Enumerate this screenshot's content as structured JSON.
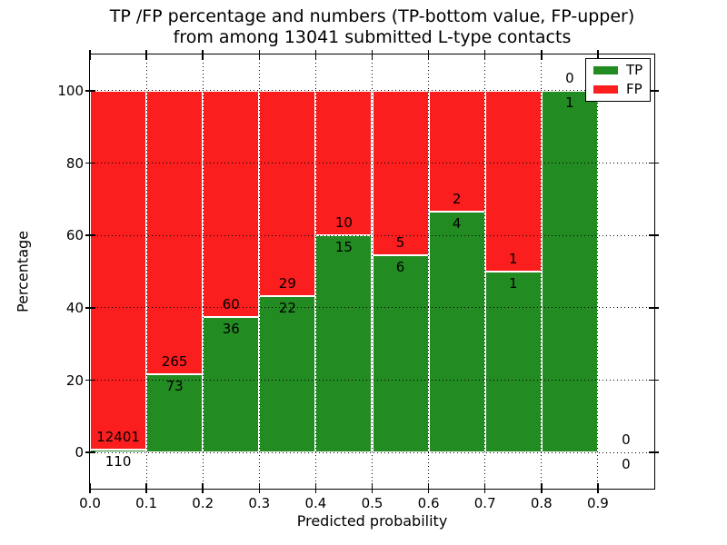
{
  "chart_data": {
    "type": "bar",
    "stacked": true,
    "title_lines": [
      "TP /FP percentage and numbers (TP-bottom value, FP-upper)",
      "from among 13041 submitted L-type contacts"
    ],
    "xlabel": "Predicted probability",
    "ylabel": "Percentage",
    "xlim": [
      0.0,
      1.0
    ],
    "ylim": [
      -10,
      110
    ],
    "xticks": [
      "0.0",
      "0.1",
      "0.2",
      "0.3",
      "0.4",
      "0.5",
      "0.6",
      "0.7",
      "0.8",
      "0.9"
    ],
    "yticks": [
      "0",
      "20",
      "40",
      "60",
      "80",
      "100"
    ],
    "grid": "dotted, both axes, drawn above bars",
    "bins": [
      {
        "x0": 0.0,
        "x1": 0.1,
        "tp": 110,
        "fp": 12401,
        "tp_pct": 0.9
      },
      {
        "x0": 0.1,
        "x1": 0.2,
        "tp": 73,
        "fp": 265,
        "tp_pct": 21.6
      },
      {
        "x0": 0.2,
        "x1": 0.3,
        "tp": 36,
        "fp": 60,
        "tp_pct": 37.5
      },
      {
        "x0": 0.3,
        "x1": 0.4,
        "tp": 22,
        "fp": 29,
        "tp_pct": 43.1
      },
      {
        "x0": 0.4,
        "x1": 0.5,
        "tp": 15,
        "fp": 10,
        "tp_pct": 60.0
      },
      {
        "x0": 0.5,
        "x1": 0.6,
        "tp": 6,
        "fp": 5,
        "tp_pct": 54.5
      },
      {
        "x0": 0.6,
        "x1": 0.7,
        "tp": 4,
        "fp": 2,
        "tp_pct": 66.7
      },
      {
        "x0": 0.7,
        "x1": 0.8,
        "tp": 1,
        "fp": 1,
        "tp_pct": 50.0
      },
      {
        "x0": 0.8,
        "x1": 0.9,
        "tp": 1,
        "fp": 0,
        "tp_pct": 100.0
      },
      {
        "x0": 0.9,
        "x1": 1.0,
        "tp": 0,
        "fp": 0,
        "tp_pct": 0.0
      }
    ],
    "legend": {
      "position": "upper right",
      "entries": [
        {
          "label": "TP",
          "color": "#228b22"
        },
        {
          "label": "FP",
          "color": "#fa1e1e"
        }
      ]
    },
    "colors": {
      "tp": "#228b22",
      "fp": "#fa1e1e",
      "bar_edge": "#ffffff",
      "grid": "#000000",
      "text": "#000000",
      "background": "#ffffff"
    }
  }
}
